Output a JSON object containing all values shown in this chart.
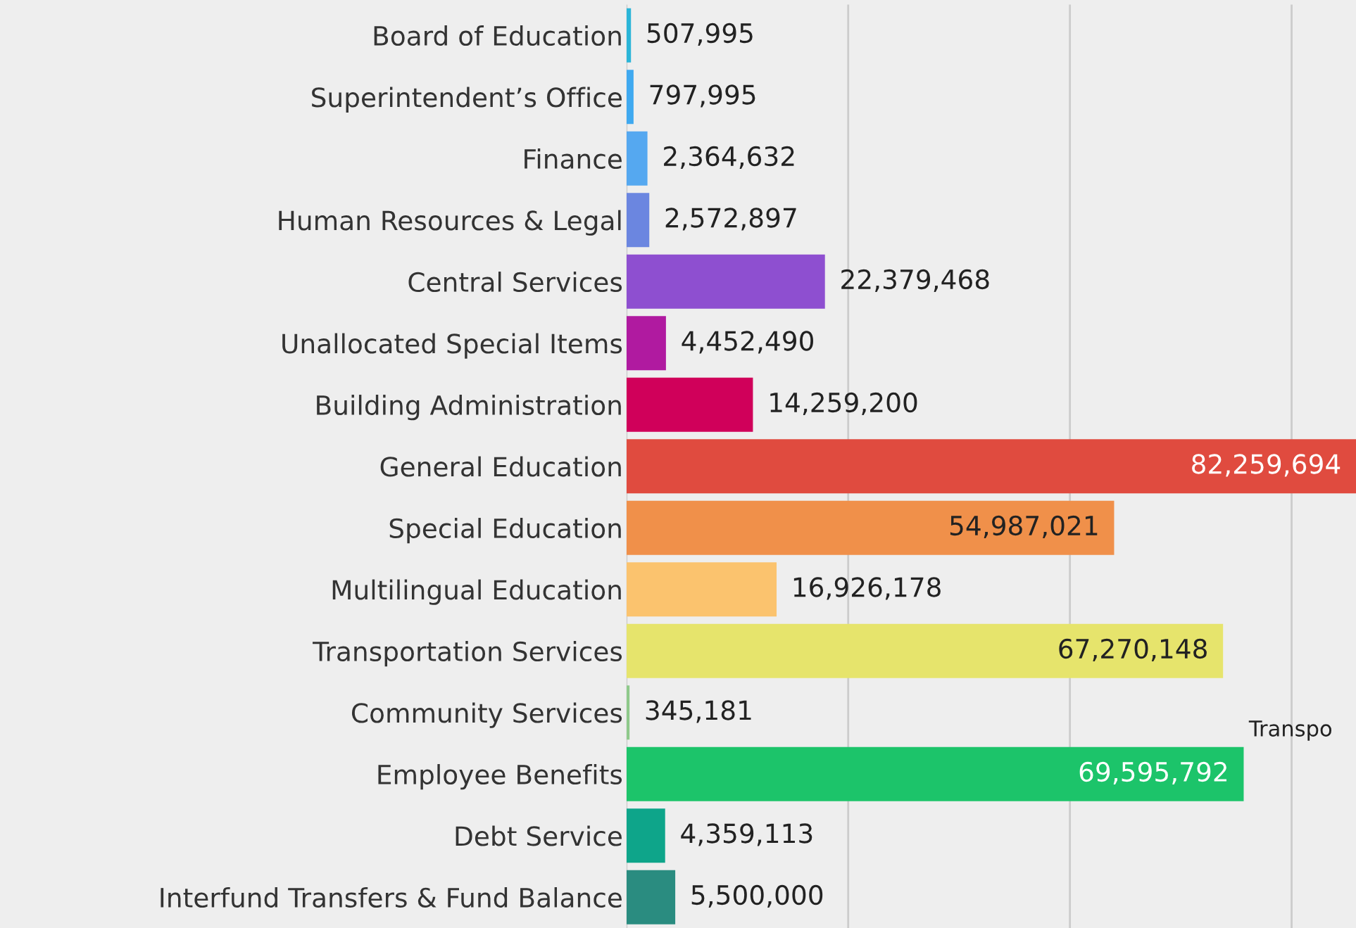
{
  "chart_data": {
    "type": "bar",
    "orientation": "horizontal",
    "categories": [
      "Board of Education",
      "Superintendent’s Office",
      "Finance",
      "Human Resources & Legal",
      "Central Services",
      "Unallocated Special Items",
      "Building Administration",
      "General Education",
      "Special Education",
      "Multilingual Education",
      "Transportation Services",
      "Community Services",
      "Employee Benefits",
      "Debt Service",
      "Interfund Transfers & Fund Balance"
    ],
    "values": [
      507995,
      797995,
      2364632,
      2572897,
      22379468,
      4452490,
      14259200,
      82259694,
      54987021,
      16926178,
      67270148,
      345181,
      69595792,
      4359113,
      5500000
    ],
    "colors": [
      "#2bb5d8",
      "#3fa9f0",
      "#55a8f0",
      "#6b86e0",
      "#8e4fd0",
      "#b01aa0",
      "#d0005a",
      "#e04b3f",
      "#f0904a",
      "#fbc36e",
      "#e6e46c",
      "#8ec98a",
      "#1cc46a",
      "#0ea58a",
      "#2a8c80"
    ],
    "value_labels": [
      "507,995",
      "797,995",
      "2,364,632",
      "2,572,897",
      "22,379,468",
      "4,452,490",
      "14,259,200",
      "82,259,694",
      "54,987,021",
      "16,926,178",
      "67,270,148",
      "345,181",
      "69,595,792",
      "4,359,113",
      "5,500,000"
    ],
    "grid": "x",
    "tick_labels": "y",
    "legend": false,
    "annotations": [
      "Transpo"
    ]
  }
}
